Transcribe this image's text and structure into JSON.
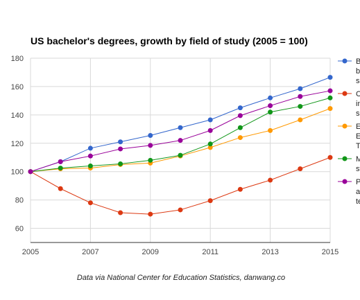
{
  "chart_data": {
    "type": "line",
    "title": "US bachelor's degrees, growth by field of study (2005 = 100)",
    "source": "Data via National Center for Education Statistics, danwang.co",
    "x": [
      2005,
      2006,
      2007,
      2008,
      2009,
      2010,
      2011,
      2012,
      2013,
      2014,
      2015
    ],
    "x_ticks": [
      "2005",
      "2007",
      "2009",
      "2011",
      "2013",
      "2015"
    ],
    "y_ticks": [
      "60",
      "80",
      "100",
      "120",
      "140",
      "160",
      "180"
    ],
    "xlim": [
      2005,
      2015
    ],
    "ylim": [
      50,
      180
    ],
    "grid": true,
    "legend_position": "right (truncated)",
    "series": [
      {
        "name": "B\nb\ns",
        "legend_lines": [
          "B",
          "b",
          "s"
        ],
        "color": "#3366cc",
        "values": [
          100,
          107,
          116.5,
          121,
          125.5,
          131,
          136.5,
          145,
          152,
          158.5,
          166.5
        ]
      },
      {
        "name": "C\nin\nsc",
        "legend_lines": [
          "C",
          "in",
          "sc"
        ],
        "color": "#dc3912",
        "values": [
          100,
          88,
          78,
          71,
          70,
          73,
          79.5,
          87.5,
          94,
          102,
          110
        ]
      },
      {
        "name": "E\nE\nT",
        "legend_lines": [
          "E",
          "E",
          "T"
        ],
        "color": "#ff9900",
        "values": [
          100,
          102,
          102.5,
          105,
          106,
          111,
          117,
          124,
          129,
          136.5,
          144.5
        ]
      },
      {
        "name": "M\nst",
        "legend_lines": [
          "M",
          "st"
        ],
        "color": "#109618",
        "values": [
          100,
          102.5,
          104,
          105.5,
          108,
          111.5,
          119.5,
          131,
          142,
          146,
          152
        ]
      },
      {
        "name": "P\nas\nte",
        "legend_lines": [
          "P",
          "as",
          "te"
        ],
        "color": "#990099",
        "values": [
          100,
          107,
          111,
          116,
          118.5,
          122,
          129,
          139.5,
          146.5,
          153,
          157
        ]
      }
    ]
  }
}
